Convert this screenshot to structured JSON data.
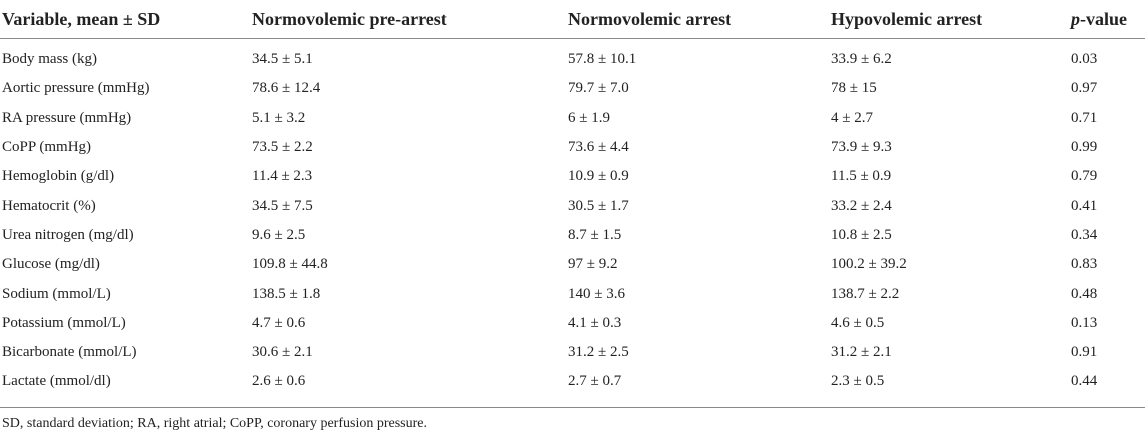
{
  "table": {
    "headers": {
      "variable": "Variable, mean ± SD",
      "pre_arrest": "Normovolemic pre-arrest",
      "normo_arrest": "Normovolemic arrest",
      "hypo_arrest": "Hypovolemic arrest",
      "p_italic": "p",
      "p_rest": "-value"
    },
    "rows": [
      {
        "variable": "Body mass (kg)",
        "pre_arrest": "34.5 ± 5.1",
        "normo_arrest": "57.8 ± 10.1",
        "hypo_arrest": "33.9 ± 6.2",
        "p": "0.03"
      },
      {
        "variable": "Aortic pressure (mmHg)",
        "pre_arrest": "78.6 ± 12.4",
        "normo_arrest": "79.7 ± 7.0",
        "hypo_arrest": "78 ± 15",
        "p": "0.97"
      },
      {
        "variable": "RA pressure (mmHg)",
        "pre_arrest": "5.1 ± 3.2",
        "normo_arrest": "6 ± 1.9",
        "hypo_arrest": "4 ± 2.7",
        "p": "0.71"
      },
      {
        "variable": "CoPP (mmHg)",
        "pre_arrest": "73.5 ± 2.2",
        "normo_arrest": "73.6 ± 4.4",
        "hypo_arrest": "73.9 ± 9.3",
        "p": "0.99"
      },
      {
        "variable": "Hemoglobin (g/dl)",
        "pre_arrest": "11.4 ± 2.3",
        "normo_arrest": "10.9 ± 0.9",
        "hypo_arrest": "11.5 ± 0.9",
        "p": "0.79"
      },
      {
        "variable": "Hematocrit (%)",
        "pre_arrest": "34.5 ± 7.5",
        "normo_arrest": "30.5 ± 1.7",
        "hypo_arrest": "33.2 ± 2.4",
        "p": "0.41"
      },
      {
        "variable": "Urea nitrogen (mg/dl)",
        "pre_arrest": "9.6 ± 2.5",
        "normo_arrest": "8.7 ± 1.5",
        "hypo_arrest": "10.8 ± 2.5",
        "p": "0.34"
      },
      {
        "variable": "Glucose (mg/dl)",
        "pre_arrest": "109.8 ± 44.8",
        "normo_arrest": "97 ± 9.2",
        "hypo_arrest": "100.2 ± 39.2",
        "p": "0.83"
      },
      {
        "variable": "Sodium (mmol/L)",
        "pre_arrest": "138.5 ± 1.8",
        "normo_arrest": "140 ± 3.6",
        "hypo_arrest": "138.7 ± 2.2",
        "p": "0.48"
      },
      {
        "variable": "Potassium (mmol/L)",
        "pre_arrest": "4.7 ± 0.6",
        "normo_arrest": "4.1 ± 0.3",
        "hypo_arrest": "4.6 ± 0.5",
        "p": "0.13"
      },
      {
        "variable": "Bicarbonate (mmol/L)",
        "pre_arrest": "30.6 ± 2.1",
        "normo_arrest": "31.2 ± 2.5",
        "hypo_arrest": "31.2 ± 2.1",
        "p": "0.91"
      },
      {
        "variable": "Lactate (mmol/dl)",
        "pre_arrest": "2.6 ± 0.6",
        "normo_arrest": "2.7 ± 0.7",
        "hypo_arrest": "2.3 ± 0.5",
        "p": "0.44"
      }
    ],
    "footnote": "SD, standard deviation; RA, right atrial; CoPP, coronary perfusion pressure."
  }
}
